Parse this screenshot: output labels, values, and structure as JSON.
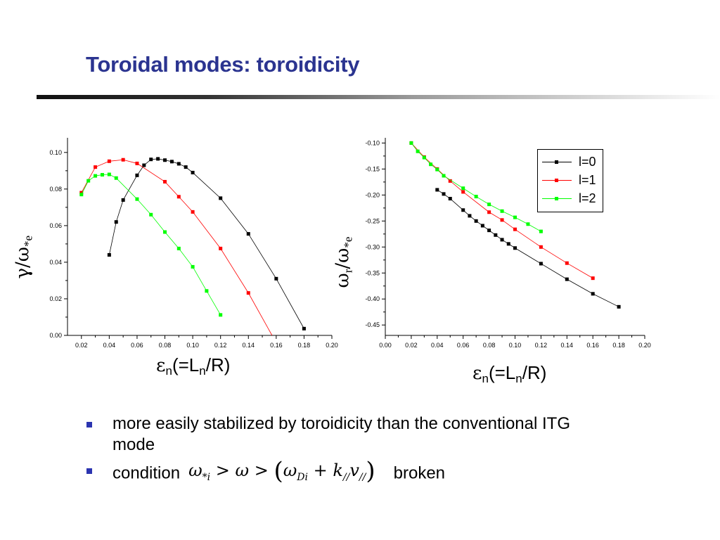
{
  "slide": {
    "title": "Toroidal modes: toroidicity"
  },
  "left_labels": {
    "y_sym": "γ/ω",
    "y_sub": "*e",
    "x_sym": "ε",
    "x_n": "n",
    "x_mid": "(=L",
    "x_n2": "n",
    "x_end": "/R)"
  },
  "right_labels": {
    "y_sym": "ω",
    "y_sub1": "r",
    "y_mid": "/ω",
    "y_sub2": "*e",
    "x_sym": "ε",
    "x_n": "n",
    "x_mid": "(=L",
    "x_n2": "n",
    "x_end": "/R)"
  },
  "legend": {
    "items": [
      {
        "label": "l=0",
        "color": "#000000"
      },
      {
        "label": "l=1",
        "color": "#ff0000"
      },
      {
        "label": "l=2",
        "color": "#00ff00"
      }
    ]
  },
  "bullets": {
    "b1": " more easily stabilized by toroidicity than the conventional ITG mode",
    "b2_prefix": "condition",
    "b2_suffix": "broken"
  },
  "chart_data": [
    {
      "type": "line",
      "ylabel": "γ/ω*e",
      "xlabel": "εn(=Ln/R)",
      "xlim": [
        0.01,
        0.2
      ],
      "ylim": [
        0.0,
        0.108
      ],
      "xticks": [
        "0.02",
        "0.04",
        "0.06",
        "0.08",
        "0.10",
        "0.12",
        "0.14",
        "0.16",
        "0.18",
        "0.20"
      ],
      "yticks": [
        "0.00",
        "0.02",
        "0.04",
        "0.06",
        "0.08",
        "0.10"
      ],
      "series": [
        {
          "name": "l=0",
          "color": "#000000",
          "x": [
            0.04,
            0.045,
            0.05,
            0.06,
            0.065,
            0.07,
            0.075,
            0.08,
            0.085,
            0.09,
            0.095,
            0.1,
            0.12,
            0.14,
            0.16,
            0.18
          ],
          "y": [
            0.044,
            0.062,
            0.074,
            0.0875,
            0.093,
            0.0962,
            0.0965,
            0.0958,
            0.095,
            0.0938,
            0.092,
            0.089,
            0.075,
            0.0555,
            0.031,
            0.0037
          ],
          "line_end": null
        },
        {
          "name": "l=1",
          "color": "#ff0000",
          "x": [
            0.02,
            0.03,
            0.04,
            0.05,
            0.06,
            0.08,
            0.09,
            0.1,
            0.12,
            0.14
          ],
          "y": [
            0.078,
            0.092,
            0.0952,
            0.096,
            0.094,
            0.084,
            0.0758,
            0.0675,
            0.0475,
            0.0232
          ],
          "line_end": [
            0.157,
            0.0
          ]
        },
        {
          "name": "l=2",
          "color": "#00ff00",
          "x": [
            0.02,
            0.025,
            0.03,
            0.035,
            0.04,
            0.045,
            0.06,
            0.07,
            0.08,
            0.09,
            0.1,
            0.11,
            0.12
          ],
          "y": [
            0.077,
            0.0845,
            0.0872,
            0.0878,
            0.088,
            0.086,
            0.0745,
            0.066,
            0.0565,
            0.0475,
            0.0375,
            0.0243,
            0.0112
          ],
          "line_end": null
        }
      ]
    },
    {
      "type": "line",
      "ylabel": "ωr/ω*e",
      "xlabel": "εn(=Ln/R)",
      "xlim": [
        0.0,
        0.2
      ],
      "ylim": [
        -0.47,
        -0.09
      ],
      "xticks": [
        "0.00",
        "0.02",
        "0.04",
        "0.06",
        "0.08",
        "0.10",
        "0.12",
        "0.14",
        "0.16",
        "0.18",
        "0.20"
      ],
      "yticks": [
        "-0.10",
        "-0.15",
        "-0.20",
        "-0.25",
        "-0.30",
        "-0.35",
        "-0.40",
        "-0.45"
      ],
      "legend_position": "top-right",
      "series": [
        {
          "name": "l=0",
          "color": "#000000",
          "x": [
            0.04,
            0.045,
            0.05,
            0.06,
            0.065,
            0.07,
            0.075,
            0.08,
            0.085,
            0.09,
            0.095,
            0.1,
            0.12,
            0.14,
            0.16,
            0.18
          ],
          "y": [
            -0.19,
            -0.198,
            -0.207,
            -0.229,
            -0.24,
            -0.25,
            -0.259,
            -0.268,
            -0.277,
            -0.286,
            -0.294,
            -0.302,
            -0.332,
            -0.362,
            -0.39,
            -0.415
          ],
          "line_end": null
        },
        {
          "name": "l=1",
          "color": "#ff0000",
          "x": [
            0.02,
            0.03,
            0.04,
            0.05,
            0.06,
            0.08,
            0.09,
            0.1,
            0.12,
            0.14,
            0.16
          ],
          "y": [
            -0.1,
            -0.127,
            -0.15,
            -0.173,
            -0.194,
            -0.233,
            -0.248,
            -0.266,
            -0.3,
            -0.331,
            -0.36
          ],
          "line_end": null
        },
        {
          "name": "l=2",
          "color": "#00ff00",
          "x": [
            0.02,
            0.025,
            0.03,
            0.035,
            0.04,
            0.045,
            0.06,
            0.07,
            0.08,
            0.09,
            0.1,
            0.11,
            0.12
          ],
          "y": [
            -0.1,
            -0.116,
            -0.128,
            -0.141,
            -0.151,
            -0.163,
            -0.187,
            -0.203,
            -0.218,
            -0.231,
            -0.243,
            -0.256,
            -0.27
          ],
          "line_end": null
        }
      ]
    }
  ]
}
